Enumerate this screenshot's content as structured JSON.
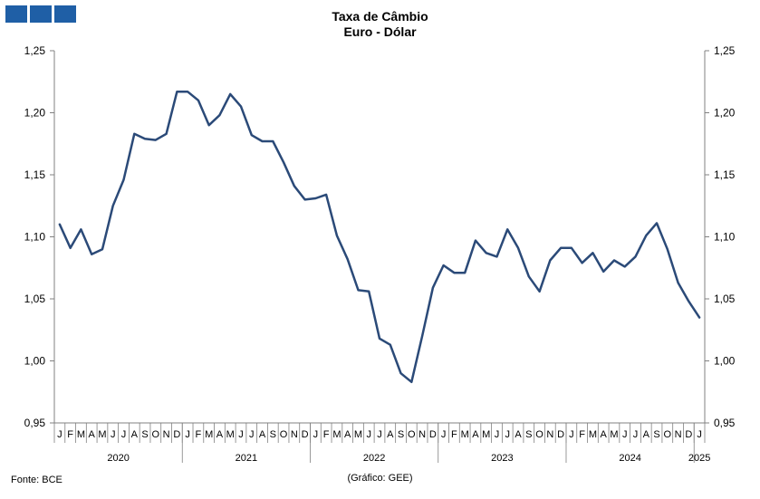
{
  "header": {
    "title_line1": "Taxa de Câmbio",
    "title_line2": "Euro - Dólar"
  },
  "footer": {
    "source": "Fonte: BCE",
    "credit": "(Gráfico: GEE)"
  },
  "colors": {
    "line": "#2b4a78",
    "logo": "#1f5fa6",
    "axis": "#808080"
  },
  "chart_data": {
    "type": "line",
    "ylim": [
      0.95,
      1.25
    ],
    "yticks": [
      "0,95",
      "1,00",
      "1,05",
      "1,10",
      "1,15",
      "1,20",
      "1,25"
    ],
    "ytick_values": [
      0.95,
      1.0,
      1.05,
      1.1,
      1.15,
      1.2,
      1.25
    ],
    "month_labels": [
      "J",
      "F",
      "M",
      "A",
      "M",
      "J",
      "J",
      "A",
      "S",
      "O",
      "N",
      "D"
    ],
    "years": [
      "2020",
      "2021",
      "2022",
      "2023",
      "2024",
      "2025"
    ],
    "series": [
      {
        "values": [
          1.11,
          1.091,
          1.106,
          1.086,
          1.09,
          1.125,
          1.146,
          1.183,
          1.179,
          1.178,
          1.183,
          1.217,
          1.217,
          1.21,
          1.19,
          1.198,
          1.215,
          1.205,
          1.182,
          1.177,
          1.177,
          1.16,
          1.141,
          1.13,
          1.131,
          1.134,
          1.101,
          1.082,
          1.057,
          1.056,
          1.018,
          1.013,
          0.99,
          0.983,
          1.02,
          1.059,
          1.077,
          1.071,
          1.071,
          1.097,
          1.087,
          1.084,
          1.106,
          1.091,
          1.068,
          1.056,
          1.081,
          1.091,
          1.091,
          1.079,
          1.087,
          1.072,
          1.081,
          1.076,
          1.084,
          1.101,
          1.111,
          1.09,
          1.063,
          1.048,
          1.035
        ]
      }
    ]
  }
}
